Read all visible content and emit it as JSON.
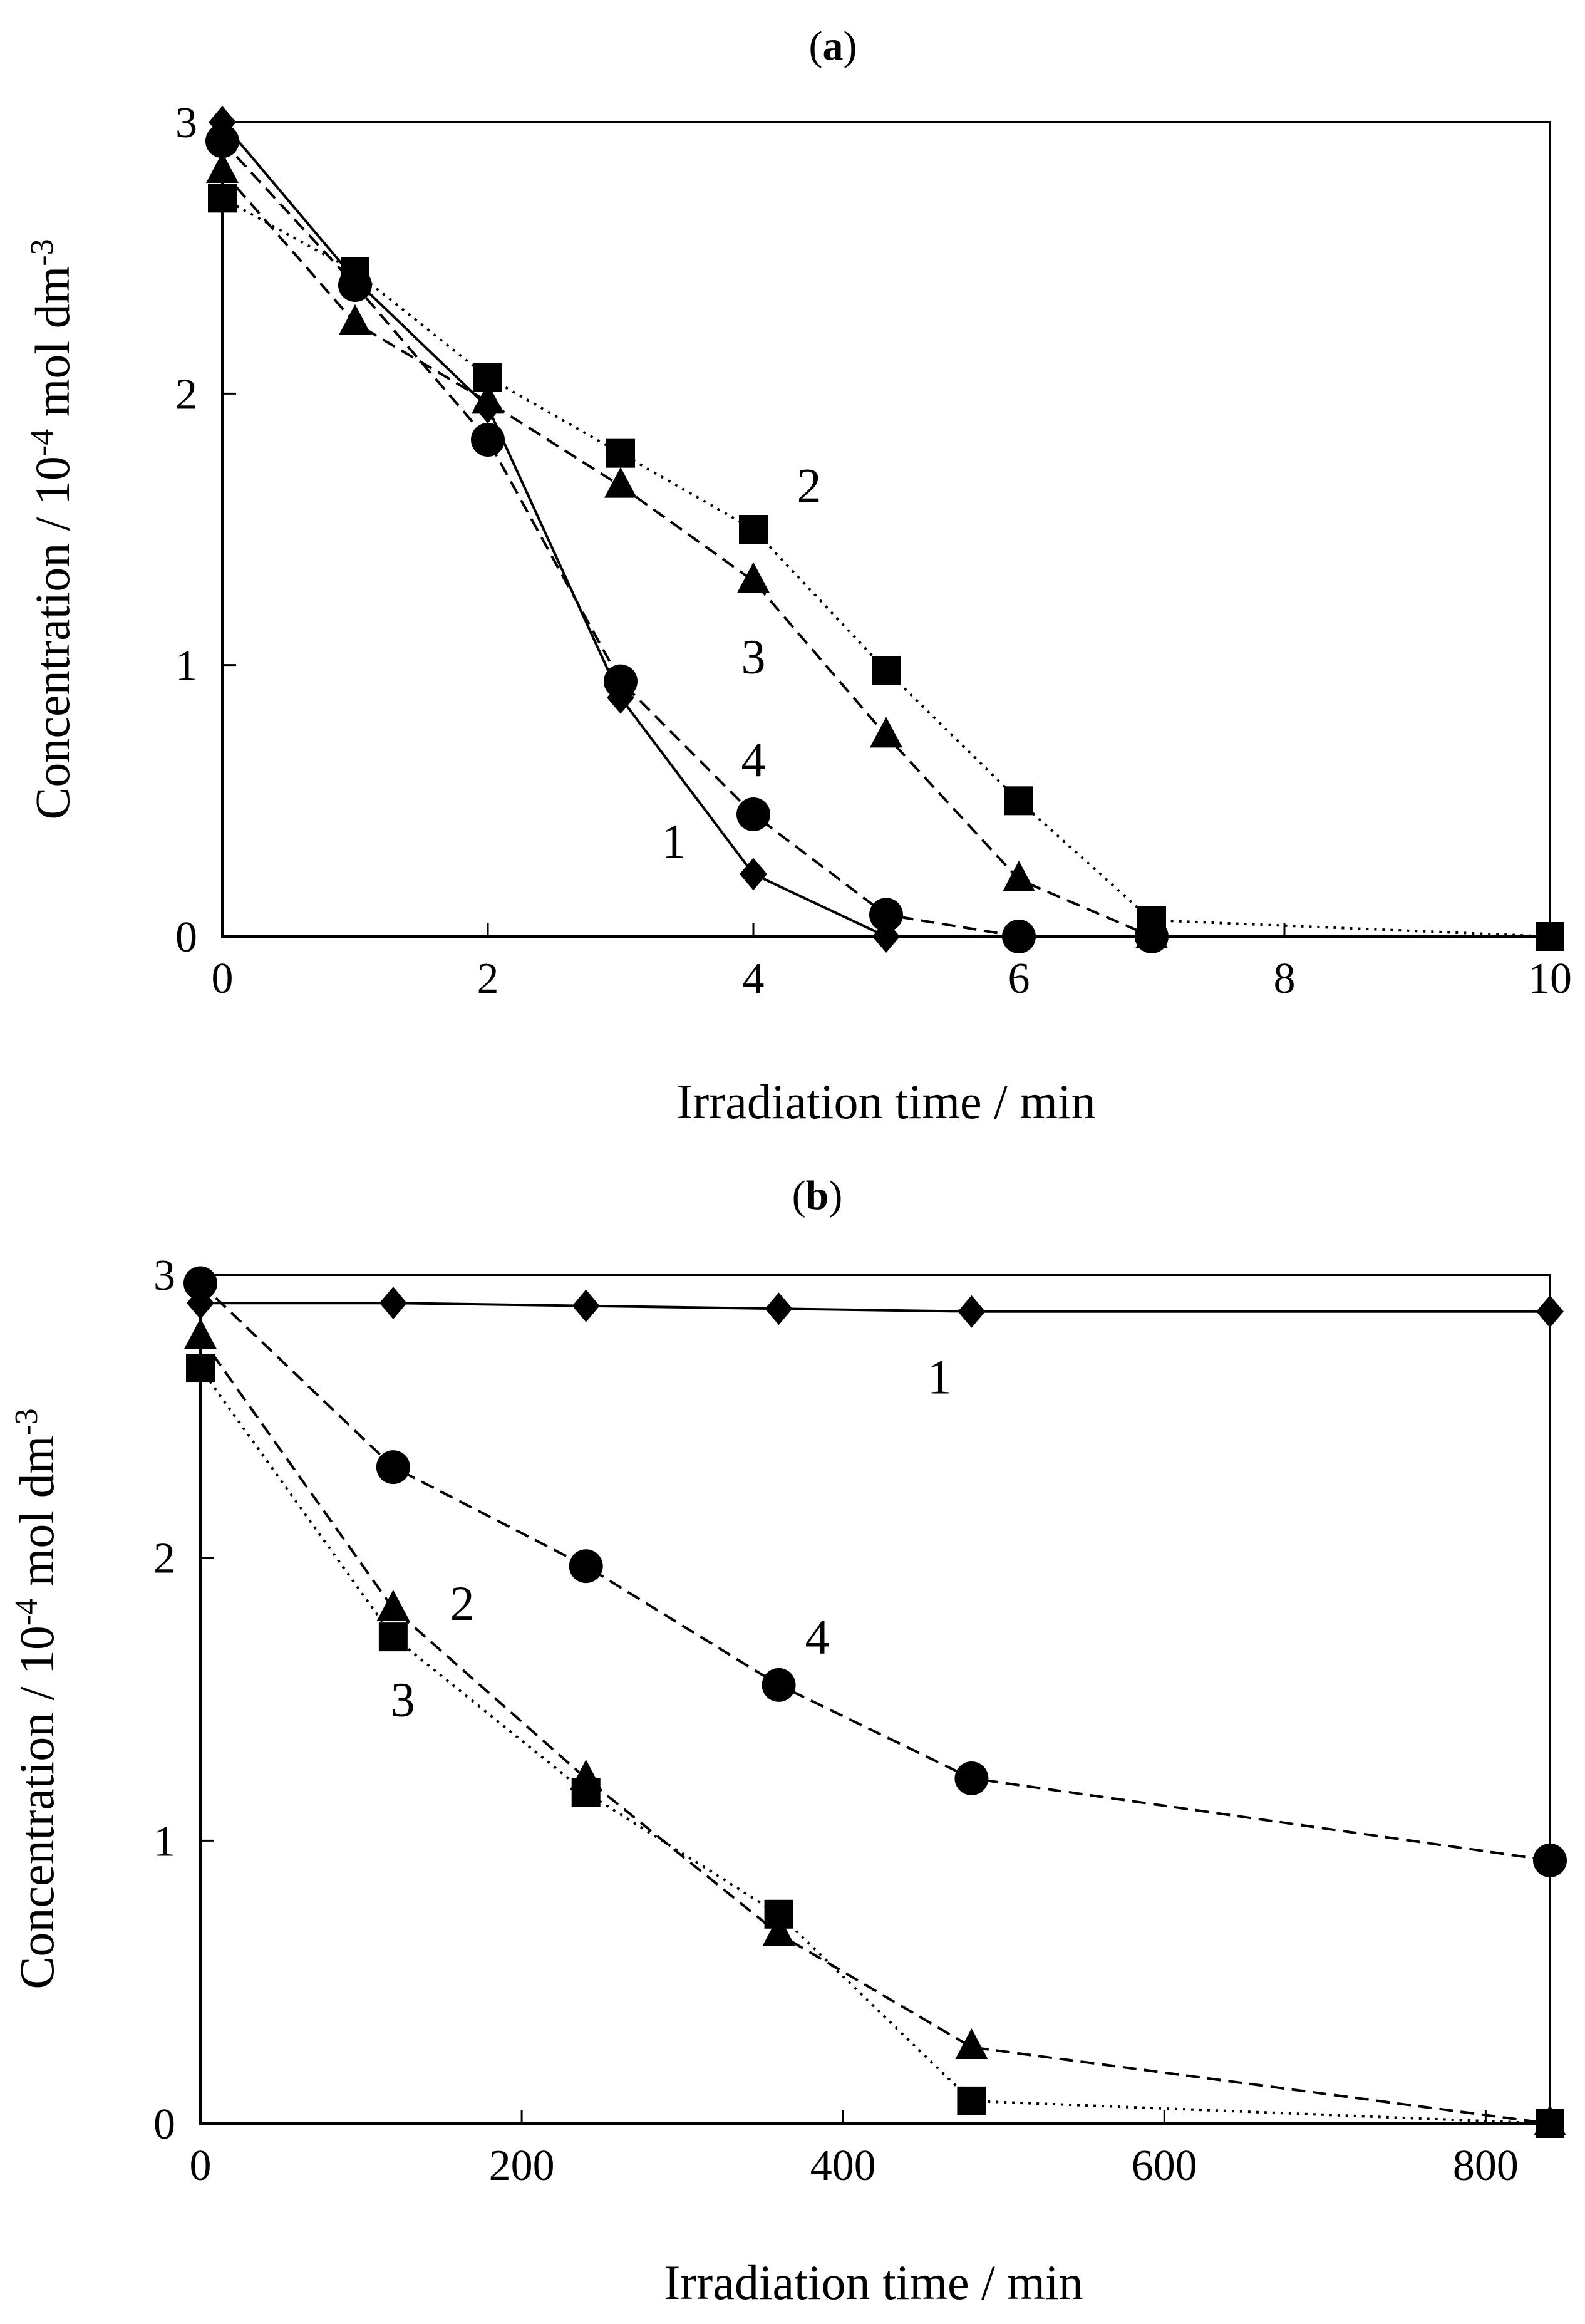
{
  "chart_data": [
    {
      "type": "line",
      "panel_label": "a",
      "title": "(a)",
      "xlabel": "Irradiation time / min",
      "ylabel": "Concentration / 10-4 mol dm-3",
      "ylabel_parts": {
        "base": "Concentration / 10",
        "sup1": "-4",
        "mid": " mol dm",
        "sup2": "-3"
      },
      "xlim": [
        0,
        10
      ],
      "ylim": [
        0,
        3
      ],
      "xticks": [
        0,
        2,
        4,
        6,
        8,
        10
      ],
      "xtick_labels": [
        "0",
        "2",
        "4",
        "6",
        "8",
        "10"
      ],
      "yticks": [
        0,
        1,
        2,
        3
      ],
      "ytick_labels": [
        "0",
        "1",
        "2",
        "3"
      ],
      "grid": false,
      "series": [
        {
          "name": "1",
          "marker": "diamond",
          "line": "solid",
          "x": [
            0,
            1,
            2,
            3,
            4,
            5,
            6,
            7
          ],
          "y": [
            3.0,
            2.42,
            1.95,
            0.88,
            0.23,
            0.0,
            0.0,
            0.0
          ]
        },
        {
          "name": "2",
          "marker": "square",
          "line": "dotted",
          "x": [
            0,
            1,
            2,
            3,
            4,
            5,
            6,
            7,
            10
          ],
          "y": [
            2.72,
            2.45,
            2.06,
            1.78,
            1.5,
            0.98,
            0.5,
            0.06,
            0.0
          ]
        },
        {
          "name": "3",
          "marker": "triangle",
          "line": "dashed",
          "x": [
            0,
            1,
            2,
            3,
            4,
            5,
            6,
            7
          ],
          "y": [
            2.82,
            2.26,
            1.97,
            1.66,
            1.31,
            0.74,
            0.21,
            0.0
          ]
        },
        {
          "name": "4",
          "marker": "circle",
          "line": "dashed",
          "x": [
            0,
            1,
            2,
            3,
            4,
            5,
            6,
            7
          ],
          "y": [
            2.93,
            2.4,
            1.83,
            0.94,
            0.45,
            0.08,
            0.0,
            0.0
          ]
        }
      ],
      "annotations": [
        {
          "text": "1",
          "x": 3.4,
          "y": 0.29
        },
        {
          "text": "2",
          "x": 4.42,
          "y": 1.6
        },
        {
          "text": "3",
          "x": 4.0,
          "y": 0.97
        },
        {
          "text": "4",
          "x": 4.0,
          "y": 0.59
        }
      ]
    },
    {
      "type": "line",
      "panel_label": "b",
      "title": "(b)",
      "xlabel": "Irradiation time / min",
      "ylabel": "Concentration / 10-4 mol dm-3",
      "ylabel_parts": {
        "base": "Concentration / 10",
        "sup1": "-4",
        "mid": " mol dm",
        "sup2": "-3"
      },
      "xlim": [
        0,
        840
      ],
      "ylim": [
        0,
        3
      ],
      "xticks": [
        0,
        200,
        400,
        600,
        800
      ],
      "xtick_labels": [
        "0",
        "200",
        "400",
        "600",
        "800"
      ],
      "yticks": [
        0,
        1,
        2,
        3
      ],
      "ytick_labels": [
        "0",
        "1",
        "2",
        "3"
      ],
      "grid": false,
      "series": [
        {
          "name": "1",
          "marker": "diamond",
          "line": "solid",
          "x": [
            0,
            120,
            240,
            360,
            480,
            840
          ],
          "y": [
            2.9,
            2.9,
            2.89,
            2.88,
            2.87,
            2.87
          ]
        },
        {
          "name": "2",
          "marker": "triangle",
          "line": "dashed",
          "x": [
            0,
            120,
            240,
            360,
            480,
            840
          ],
          "y": [
            2.78,
            1.82,
            1.22,
            0.67,
            0.27,
            0.0
          ]
        },
        {
          "name": "3",
          "marker": "square",
          "line": "dotted",
          "x": [
            0,
            120,
            240,
            360,
            480,
            840
          ],
          "y": [
            2.67,
            1.72,
            1.17,
            0.74,
            0.08,
            0.0
          ]
        },
        {
          "name": "4",
          "marker": "circle",
          "line": "dashed",
          "x": [
            0,
            120,
            240,
            360,
            480,
            840
          ],
          "y": [
            2.97,
            2.32,
            1.97,
            1.55,
            1.22,
            0.93
          ]
        }
      ],
      "annotations": [
        {
          "text": "1",
          "x": 460,
          "y": 2.58
        },
        {
          "text": "2",
          "x": 163,
          "y": 1.78
        },
        {
          "text": "3",
          "x": 126,
          "y": 1.44
        },
        {
          "text": "4",
          "x": 384,
          "y": 1.66
        }
      ]
    }
  ]
}
